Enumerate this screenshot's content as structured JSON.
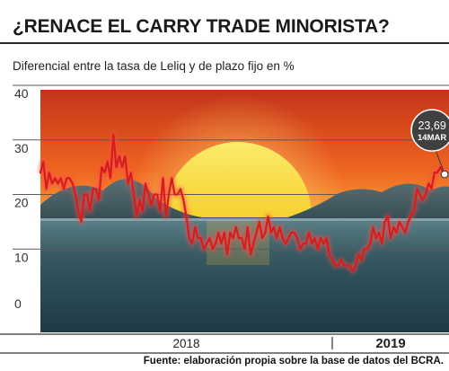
{
  "header": {
    "title": "¿RENACE EL CARRY TRADE MINORISTA?",
    "subtitle": "Diferencial entre la tasa de Leliq y de plazo fijo en %"
  },
  "footer": {
    "source": "Fuente: elaboración propia sobre la base de datos del BCRA."
  },
  "colors": {
    "line": "#d41e1e",
    "sky_top": "#c4331a",
    "sky_mid": "#ee6320",
    "sky_horizon": "#f7a43a",
    "sun": "#f8e040",
    "sea": "#2f545f",
    "callout_bg": "#404040"
  },
  "chart_data": {
    "type": "line",
    "ylim": [
      0,
      40
    ],
    "yticks": [
      0,
      10,
      20,
      30,
      40
    ],
    "ytick_labels": [
      "0",
      "10",
      "20",
      "30",
      "40"
    ],
    "x_periods": [
      {
        "label": "2018",
        "bold": false,
        "x_range": [
          0,
          100
        ]
      },
      {
        "label": "2019",
        "bold": true,
        "x_range": [
          100,
          140
        ]
      }
    ],
    "annotation": {
      "value": "23,69",
      "date": "14MAR",
      "x": 138.5,
      "y": 23.69
    },
    "series": [
      {
        "x": [
          0,
          1,
          2,
          3,
          4,
          5,
          6,
          7,
          8,
          9,
          10,
          11,
          12,
          13,
          14,
          15,
          16,
          17,
          18,
          19,
          20,
          21,
          22,
          23,
          24,
          25,
          26,
          27,
          28,
          29,
          30,
          31,
          32,
          33,
          34,
          35,
          36,
          37,
          38,
          39,
          40,
          41,
          42,
          43,
          44,
          45,
          46,
          47,
          48,
          49,
          50,
          51,
          52,
          53,
          54,
          55,
          56,
          57,
          58,
          59,
          60,
          61,
          62,
          63,
          64,
          65,
          66,
          67,
          68,
          69,
          70,
          71,
          72,
          73,
          74,
          75,
          76,
          77,
          78,
          79,
          80,
          81,
          82,
          83,
          84,
          85,
          86,
          87,
          88,
          89,
          90,
          91,
          92,
          93,
          94,
          95,
          96,
          97,
          98,
          99,
          100,
          101,
          102,
          103,
          104,
          105,
          106,
          107,
          108,
          109,
          110,
          111,
          112,
          113,
          114,
          115,
          116,
          117,
          118,
          119,
          120,
          121,
          122,
          123,
          124,
          125,
          126,
          127,
          128,
          129,
          130,
          131,
          132,
          133,
          134,
          135,
          136,
          137,
          138,
          138.5
        ],
        "values": [
          24,
          26,
          21,
          24,
          22,
          23,
          22,
          23,
          21,
          23,
          23,
          22,
          20,
          17,
          15,
          20,
          20,
          17,
          21,
          21,
          19,
          25,
          24,
          26,
          23,
          31,
          25,
          27,
          25,
          27,
          22,
          24,
          20,
          16,
          19,
          17,
          22,
          20,
          18,
          20,
          20,
          17,
          23,
          16,
          20,
          23,
          20,
          20,
          21,
          19,
          16,
          12,
          11,
          14,
          12,
          12,
          10,
          11,
          12,
          10,
          11,
          13,
          11,
          13,
          9,
          13,
          12,
          14,
          12,
          12,
          10,
          14,
          9,
          11,
          13,
          15,
          12,
          13,
          16,
          13,
          14,
          12,
          14,
          12,
          11,
          12,
          13,
          13,
          12,
          10,
          11,
          11,
          13,
          11,
          12,
          10,
          12,
          11,
          12,
          9,
          8,
          7,
          7,
          8,
          7,
          7,
          7,
          6,
          7,
          9,
          8,
          10,
          10,
          11,
          14,
          12,
          13,
          11,
          15,
          16,
          12,
          14,
          13,
          15,
          14,
          13,
          15,
          16,
          17,
          21,
          20,
          19,
          20,
          22,
          21,
          24,
          24,
          25,
          24,
          23.69
        ]
      }
    ]
  }
}
